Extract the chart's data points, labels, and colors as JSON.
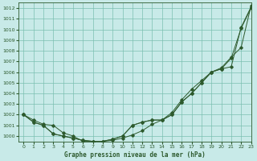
{
  "background_color": "#c8eae8",
  "grid_color": "#7bbfb0",
  "line_color": "#2d5a2d",
  "xlabel": "Graphe pression niveau de la mer (hPa)",
  "ylim": [
    999.5,
    1012.5
  ],
  "xlim": [
    -0.5,
    23
  ],
  "yticks": [
    1000,
    1001,
    1002,
    1003,
    1004,
    1005,
    1006,
    1007,
    1008,
    1009,
    1010,
    1011,
    1012
  ],
  "xticks": [
    0,
    1,
    2,
    3,
    4,
    5,
    6,
    7,
    8,
    9,
    10,
    11,
    12,
    13,
    14,
    15,
    16,
    17,
    18,
    19,
    20,
    21,
    22,
    23
  ],
  "series": [
    [
      1002.0,
      1001.5,
      1001.1,
      1001.0,
      1000.3,
      1000.0,
      999.5,
      999.5,
      999.5,
      999.6,
      999.8,
      1000.1,
      1000.5,
      1001.1,
      1001.5,
      1002.2,
      1003.4,
      1004.4,
      1005.2,
      1006.0,
      1006.4,
      1007.4,
      1008.3,
      1012.2
    ],
    [
      1002.0,
      1001.3,
      1001.0,
      1000.2,
      1000.0,
      999.8,
      999.6,
      999.5,
      999.5,
      999.7,
      1000.0,
      1001.0,
      1001.3,
      1001.5,
      1001.5,
      1002.0,
      1003.2,
      1004.0,
      1005.0,
      1006.0,
      1006.3,
      1006.5,
      1010.2,
      1012.1
    ],
    [
      1002.0,
      1001.3,
      1001.0,
      1000.2,
      1000.0,
      999.8,
      999.6,
      999.5,
      999.5,
      999.7,
      1000.0,
      1001.0,
      1001.3,
      1001.5,
      1001.5,
      1002.0,
      1003.2,
      1004.0,
      1005.0,
      1006.0,
      1006.3,
      1007.3,
      1010.1,
      1012.0
    ]
  ]
}
